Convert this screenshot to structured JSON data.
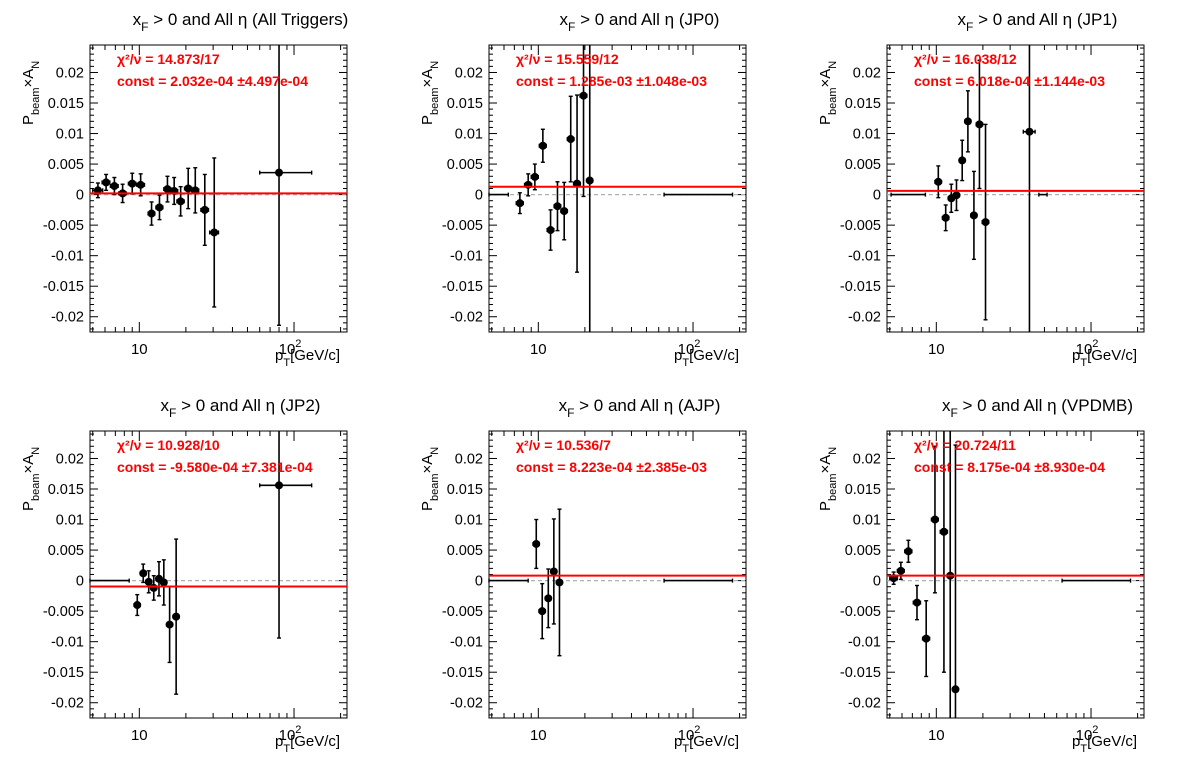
{
  "figure": {
    "y_axis_label": "P_beam × A_N",
    "x_axis_label": "p_T [GeV/c]"
  },
  "chart_data": [
    {
      "type": "scatter",
      "title_main": "x",
      "title_sub": "F",
      "title_rest": " > 0 and All η (All Triggers)",
      "xlabel": "p_T [GeV/c]",
      "ylabel": "P_beam × A_N",
      "x_scale": "log",
      "xlim": [
        4.8,
        220
      ],
      "ylim": [
        -0.0225,
        0.0245
      ],
      "y_ticks": [
        "0.02",
        "0.015",
        "0.01",
        "0.005",
        "0",
        "-0.005",
        "-0.01",
        "-0.015",
        "-0.02"
      ],
      "x_tick_labels": [
        "10",
        "10²"
      ],
      "fit_chi2": "χ²/ν = 14.873/17",
      "fit_const": "const = 2.032e-04  ±4.497e-04",
      "fit_value": 0.000203,
      "points": [
        {
          "x": 5.4,
          "xerr": [
            0.4,
            0.4
          ],
          "y": 0.0007,
          "yerr": 0.0012
        },
        {
          "x": 6.1,
          "xerr": [
            0.35,
            0.35
          ],
          "y": 0.002,
          "yerr": 0.0013
        },
        {
          "x": 6.9,
          "xerr": [
            0.4,
            0.4
          ],
          "y": 0.0014,
          "yerr": 0.0014
        },
        {
          "x": 7.8,
          "xerr": [
            0.45,
            0.45
          ],
          "y": 0.0002,
          "yerr": 0.0015
        },
        {
          "x": 9.0,
          "xerr": [
            0.5,
            0.5
          ],
          "y": 0.0018,
          "yerr": 0.0017
        },
        {
          "x": 10.2,
          "xerr": [
            0.6,
            0.6
          ],
          "y": 0.0016,
          "yerr": 0.0018
        },
        {
          "x": 12.0,
          "xerr": [
            0.6,
            0.6
          ],
          "y": -0.0031,
          "yerr": 0.0019
        },
        {
          "x": 13.5,
          "xerr": [
            0.7,
            0.7
          ],
          "y": -0.0021,
          "yerr": 0.002
        },
        {
          "x": 15.2,
          "xerr": [
            0.8,
            0.8
          ],
          "y": 0.0009,
          "yerr": 0.0021
        },
        {
          "x": 16.8,
          "xerr": [
            0.9,
            0.9
          ],
          "y": 0.0006,
          "yerr": 0.0022
        },
        {
          "x": 18.5,
          "xerr": [
            1.0,
            1.0
          ],
          "y": -0.0011,
          "yerr": 0.0024
        },
        {
          "x": 20.7,
          "xerr": [
            1.1,
            1.1
          ],
          "y": 0.001,
          "yerr": 0.0033
        },
        {
          "x": 23.0,
          "xerr": [
            1.2,
            1.2
          ],
          "y": 0.0007,
          "yerr": 0.0037
        },
        {
          "x": 26.5,
          "xerr": [
            1.5,
            1.5
          ],
          "y": -0.0025,
          "yerr": 0.0058
        },
        {
          "x": 30.5,
          "xerr": [
            2.0,
            2.0
          ],
          "y": -0.0062,
          "yerr": 0.0122
        },
        {
          "x": 80.0,
          "xerr": [
            20,
            50
          ],
          "y": 0.0036,
          "yerr": 0.025
        }
      ]
    },
    {
      "type": "scatter",
      "title_main": "x",
      "title_sub": "F",
      "title_rest": " > 0 and All η (JP0)",
      "xlabel": "p_T [GeV/c]",
      "ylabel": "P_beam × A_N",
      "x_scale": "log",
      "xlim": [
        4.8,
        220
      ],
      "ylim": [
        -0.0225,
        0.0245
      ],
      "y_ticks": [
        "0.02",
        "0.015",
        "0.01",
        "0.005",
        "0",
        "-0.005",
        "-0.01",
        "-0.015",
        "-0.02"
      ],
      "x_tick_labels": [
        "10",
        "10²"
      ],
      "fit_chi2": "χ²/ν = 15.559/12",
      "fit_const": "const = 1.285e-03  ±1.048e-03",
      "fit_value": 0.001285,
      "points": [
        {
          "x": 5.6,
          "xerr": [
            0.8,
            0.8
          ],
          "y": 0.0,
          "yerr": 0.0
        },
        {
          "x": 7.6,
          "xerr": [
            0.4,
            0.4
          ],
          "y": -0.0014,
          "yerr": 0.0017
        },
        {
          "x": 8.6,
          "xerr": [
            0.45,
            0.45
          ],
          "y": 0.0016,
          "yerr": 0.0018
        },
        {
          "x": 9.5,
          "xerr": [
            0.5,
            0.5
          ],
          "y": 0.0029,
          "yerr": 0.0021
        },
        {
          "x": 10.7,
          "xerr": [
            0.55,
            0.55
          ],
          "y": 0.008,
          "yerr": 0.0027
        },
        {
          "x": 12.0,
          "xerr": [
            0.6,
            0.6
          ],
          "y": -0.0058,
          "yerr": 0.0033
        },
        {
          "x": 13.3,
          "xerr": [
            0.65,
            0.65
          ],
          "y": -0.0019,
          "yerr": 0.004
        },
        {
          "x": 14.7,
          "xerr": [
            0.7,
            0.7
          ],
          "y": -0.0027,
          "yerr": 0.0047
        },
        {
          "x": 16.2,
          "xerr": [
            0.8,
            0.8
          ],
          "y": 0.0091,
          "yerr": 0.007
        },
        {
          "x": 17.8,
          "xerr": [
            0.9,
            0.9
          ],
          "y": 0.0018,
          "yerr": 0.0145
        },
        {
          "x": 19.6,
          "xerr": [
            1.0,
            1.0
          ],
          "y": 0.0162,
          "yerr": 0.0165
        },
        {
          "x": 21.5,
          "xerr": [
            1.0,
            1.0
          ],
          "y": 0.0023,
          "yerr": 0.027
        },
        {
          "x": 100.0,
          "xerr": [
            35,
            80
          ],
          "y": 0.0,
          "yerr": 0.0
        }
      ]
    },
    {
      "type": "scatter",
      "title_main": "x",
      "title_sub": "F",
      "title_rest": " > 0 and All η (JP1)",
      "xlabel": "p_T [GeV/c]",
      "ylabel": "P_beam × A_N",
      "x_scale": "log",
      "xlim": [
        4.8,
        220
      ],
      "ylim": [
        -0.0225,
        0.0245
      ],
      "y_ticks": [
        "0.02",
        "0.015",
        "0.01",
        "0.005",
        "0",
        "-0.005",
        "-0.01",
        "-0.015",
        "-0.02"
      ],
      "x_tick_labels": [
        "10",
        "10²"
      ],
      "fit_chi2": "χ²/ν = 16.038/12",
      "fit_const": "const = 6.018e-04  ±1.144e-03",
      "fit_value": 0.000602,
      "points": [
        {
          "x": 6.8,
          "xerr": [
            1.7,
            1.7
          ],
          "y": 0.0,
          "yerr": 0.0
        },
        {
          "x": 10.3,
          "xerr": [
            0.5,
            0.5
          ],
          "y": 0.0021,
          "yerr": 0.0026
        },
        {
          "x": 11.5,
          "xerr": [
            0.55,
            0.55
          ],
          "y": -0.0038,
          "yerr": 0.0021
        },
        {
          "x": 12.5,
          "xerr": [
            0.55,
            0.55
          ],
          "y": -0.0006,
          "yerr": 0.0023
        },
        {
          "x": 13.5,
          "xerr": [
            0.6,
            0.6
          ],
          "y": -0.0001,
          "yerr": 0.0025
        },
        {
          "x": 14.7,
          "xerr": [
            0.65,
            0.65
          ],
          "y": 0.0056,
          "yerr": 0.0033
        },
        {
          "x": 16.0,
          "xerr": [
            0.7,
            0.7
          ],
          "y": 0.012,
          "yerr": 0.005
        },
        {
          "x": 17.5,
          "xerr": [
            0.8,
            0.8
          ],
          "y": -0.0034,
          "yerr": 0.0072
        },
        {
          "x": 19.0,
          "xerr": [
            0.9,
            0.9
          ],
          "y": 0.0115,
          "yerr": 0.0105
        },
        {
          "x": 20.8,
          "xerr": [
            1.0,
            1.0
          ],
          "y": -0.0045,
          "yerr": 0.016
        },
        {
          "x": 40.0,
          "xerr": [
            3.5,
            3.5
          ],
          "y": 0.0103,
          "yerr": 0.035
        },
        {
          "x": 49.0,
          "xerr": [
            3.0,
            3.0
          ],
          "y": 0.0,
          "yerr": 0.0
        }
      ]
    },
    {
      "type": "scatter",
      "title_main": "x",
      "title_sub": "F",
      "title_rest": " > 0 and All η (JP2)",
      "xlabel": "p_T [GeV/c]",
      "ylabel": "P_beam × A_N",
      "x_scale": "log",
      "xlim": [
        4.8,
        220
      ],
      "ylim": [
        -0.0225,
        0.0245
      ],
      "y_ticks": [
        "0.02",
        "0.015",
        "0.01",
        "0.005",
        "0",
        "-0.005",
        "-0.01",
        "-0.015",
        "-0.02"
      ],
      "x_tick_labels": [
        "10",
        "10²"
      ],
      "fit_chi2": "χ²/ν = 10.928/10",
      "fit_const": "const = -9.580e-04  ±7.381e-04",
      "fit_value": -0.000958,
      "points": [
        {
          "x": 6.6,
          "xerr": [
            1.8,
            2.0
          ],
          "y": 0.0,
          "yerr": 0.0
        },
        {
          "x": 9.7,
          "xerr": [
            0.45,
            0.45
          ],
          "y": -0.004,
          "yerr": 0.0017
        },
        {
          "x": 10.6,
          "xerr": [
            0.45,
            0.45
          ],
          "y": 0.0012,
          "yerr": 0.0015
        },
        {
          "x": 11.5,
          "xerr": [
            0.5,
            0.5
          ],
          "y": -0.0002,
          "yerr": 0.0018
        },
        {
          "x": 12.4,
          "xerr": [
            0.5,
            0.5
          ],
          "y": -0.0012,
          "yerr": 0.002
        },
        {
          "x": 13.4,
          "xerr": [
            0.55,
            0.55
          ],
          "y": 0.0003,
          "yerr": 0.0028
        },
        {
          "x": 14.4,
          "xerr": [
            0.6,
            0.6
          ],
          "y": -0.0003,
          "yerr": 0.0037
        },
        {
          "x": 15.7,
          "xerr": [
            0.7,
            0.7
          ],
          "y": -0.0072,
          "yerr": 0.0062
        },
        {
          "x": 17.3,
          "xerr": [
            0.8,
            0.8
          ],
          "y": -0.0059,
          "yerr": 0.0127
        },
        {
          "x": 80.0,
          "xerr": [
            20,
            50
          ],
          "y": 0.0156,
          "yerr": 0.025
        }
      ]
    },
    {
      "type": "scatter",
      "title_main": "x",
      "title_sub": "F",
      "title_rest": " > 0 and All η (AJP)",
      "xlabel": "p_T [GeV/c]",
      "ylabel": "P_beam × A_N",
      "x_scale": "log",
      "xlim": [
        4.8,
        220
      ],
      "ylim": [
        -0.0225,
        0.0245
      ],
      "y_ticks": [
        "0.02",
        "0.015",
        "0.01",
        "0.005",
        "0",
        "-0.005",
        "-0.01",
        "-0.015",
        "-0.02"
      ],
      "x_tick_labels": [
        "10",
        "10²"
      ],
      "fit_chi2": "χ²/ν = 10.536/7",
      "fit_const": "const = 8.223e-04  ±2.385e-03",
      "fit_value": 0.000822,
      "points": [
        {
          "x": 6.6,
          "xerr": [
            1.8,
            2.0
          ],
          "y": 0.0,
          "yerr": 0.0
        },
        {
          "x": 9.7,
          "xerr": [
            0.45,
            0.45
          ],
          "y": 0.006,
          "yerr": 0.004
        },
        {
          "x": 10.6,
          "xerr": [
            0.5,
            0.5
          ],
          "y": -0.005,
          "yerr": 0.0045
        },
        {
          "x": 11.6,
          "xerr": [
            0.5,
            0.5
          ],
          "y": -0.0029,
          "yerr": 0.0048
        },
        {
          "x": 12.6,
          "xerr": [
            0.55,
            0.55
          ],
          "y": 0.0015,
          "yerr": 0.0086
        },
        {
          "x": 13.7,
          "xerr": [
            0.6,
            0.6
          ],
          "y": -0.0003,
          "yerr": 0.012
        },
        {
          "x": 100.0,
          "xerr": [
            35,
            80
          ],
          "y": 0.0,
          "yerr": 0.0
        }
      ]
    },
    {
      "type": "scatter",
      "title_main": "x",
      "title_sub": "F",
      "title_rest": " > 0 and All η (VPDMB)",
      "xlabel": "p_T [GeV/c]",
      "ylabel": "P_beam × A_N",
      "x_scale": "log",
      "xlim": [
        4.8,
        220
      ],
      "ylim": [
        -0.0225,
        0.0245
      ],
      "y_ticks": [
        "0.02",
        "0.015",
        "0.01",
        "0.005",
        "0",
        "-0.005",
        "-0.01",
        "-0.015",
        "-0.02"
      ],
      "x_tick_labels": [
        "10",
        "10²"
      ],
      "fit_chi2": "χ²/ν = 20.724/11",
      "fit_const": "const = 8.175e-04  ±8.930e-04",
      "fit_value": 0.000818,
      "points": [
        {
          "x": 5.3,
          "xerr": [
            0.3,
            0.3
          ],
          "y": 0.0004,
          "yerr": 0.001
        },
        {
          "x": 5.9,
          "xerr": [
            0.3,
            0.3
          ],
          "y": 0.0016,
          "yerr": 0.0014
        },
        {
          "x": 6.6,
          "xerr": [
            0.35,
            0.35
          ],
          "y": 0.0048,
          "yerr": 0.0018
        },
        {
          "x": 7.5,
          "xerr": [
            0.4,
            0.4
          ],
          "y": -0.0036,
          "yerr": 0.0028
        },
        {
          "x": 8.6,
          "xerr": [
            0.45,
            0.45
          ],
          "y": -0.0095,
          "yerr": 0.0062
        },
        {
          "x": 9.8,
          "xerr": [
            0.5,
            0.5
          ],
          "y": 0.01,
          "yerr": 0.012
        },
        {
          "x": 11.2,
          "xerr": [
            0.6,
            0.6
          ],
          "y": 0.008,
          "yerr": 0.023
        },
        {
          "x": 12.3,
          "xerr": [
            0.55,
            0.55
          ],
          "y": 0.0008,
          "yerr": 0.03
        },
        {
          "x": 13.3,
          "xerr": [
            0.55,
            0.55
          ],
          "y": -0.0178,
          "yerr": 0.04
        },
        {
          "x": 100.0,
          "xerr": [
            35,
            80
          ],
          "y": 0.0,
          "yerr": 0.0
        }
      ]
    }
  ]
}
